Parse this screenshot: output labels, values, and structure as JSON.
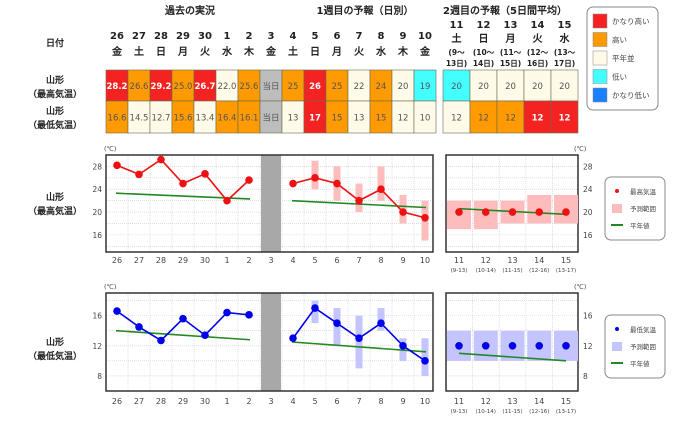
{
  "headers": {
    "past": "過去の実況",
    "week1": "1週目の予報（日別）",
    "week2": "2週目の予報（5日間平均）",
    "date_label": "日付"
  },
  "rows": {
    "max_label": [
      "山形",
      "（最高気温）"
    ],
    "min_label": [
      "山形",
      "（最低気温）"
    ]
  },
  "days": [
    {
      "d": "26",
      "w": "金"
    },
    {
      "d": "27",
      "w": "土"
    },
    {
      "d": "28",
      "w": "日"
    },
    {
      "d": "29",
      "w": "月"
    },
    {
      "d": "30",
      "w": "火"
    },
    {
      "d": "1",
      "w": "水"
    },
    {
      "d": "2",
      "w": "木"
    },
    {
      "d": "3",
      "w": "金"
    },
    {
      "d": "4",
      "w": "土"
    },
    {
      "d": "5",
      "w": "日"
    },
    {
      "d": "6",
      "w": "月"
    },
    {
      "d": "7",
      "w": "火"
    },
    {
      "d": "8",
      "w": "水"
    },
    {
      "d": "9",
      "w": "木"
    },
    {
      "d": "10",
      "w": "金"
    }
  ],
  "week2_days": [
    {
      "d": "11",
      "w": "土",
      "r1": "(9～",
      "r2": "13日)",
      "axis_sub": "(9-13)"
    },
    {
      "d": "12",
      "w": "日",
      "r1": "(10～",
      "r2": "14日)",
      "axis_sub": "(10-14)"
    },
    {
      "d": "13",
      "w": "月",
      "r1": "(11～",
      "r2": "15日)",
      "axis_sub": "(11-15)"
    },
    {
      "d": "14",
      "w": "火",
      "r1": "(12～",
      "r2": "16日)",
      "axis_sub": "(12-16)"
    },
    {
      "d": "15",
      "w": "水",
      "r1": "(13～",
      "r2": "17日)",
      "axis_sub": "(13-17)"
    }
  ],
  "table": {
    "max": [
      {
        "v": "28.2",
        "c": "vh"
      },
      {
        "v": "26.6",
        "c": "h"
      },
      {
        "v": "29.2",
        "c": "vh"
      },
      {
        "v": "25.0",
        "c": "h"
      },
      {
        "v": "26.7",
        "c": "vh"
      },
      {
        "v": "22.0",
        "c": "n"
      },
      {
        "v": "25.6",
        "c": "h"
      },
      {
        "v": "当日",
        "c": "today"
      },
      {
        "v": "25",
        "c": "h"
      },
      {
        "v": "26",
        "c": "vh"
      },
      {
        "v": "25",
        "c": "h"
      },
      {
        "v": "22",
        "c": "n"
      },
      {
        "v": "24",
        "c": "h"
      },
      {
        "v": "20",
        "c": "n"
      },
      {
        "v": "19",
        "c": "l"
      }
    ],
    "max_week2": [
      {
        "v": "20",
        "c": "l"
      },
      {
        "v": "20",
        "c": "n"
      },
      {
        "v": "20",
        "c": "n"
      },
      {
        "v": "20",
        "c": "n"
      },
      {
        "v": "20",
        "c": "n"
      }
    ],
    "min": [
      {
        "v": "16.6",
        "c": "h"
      },
      {
        "v": "14.5",
        "c": "n"
      },
      {
        "v": "12.7",
        "c": "n"
      },
      {
        "v": "15.6",
        "c": "h"
      },
      {
        "v": "13.4",
        "c": "n"
      },
      {
        "v": "16.4",
        "c": "h"
      },
      {
        "v": "16.1",
        "c": "h"
      },
      {
        "v": "当日",
        "c": "today"
      },
      {
        "v": "13",
        "c": "n"
      },
      {
        "v": "17",
        "c": "vh"
      },
      {
        "v": "15",
        "c": "h"
      },
      {
        "v": "13",
        "c": "n"
      },
      {
        "v": "15",
        "c": "h"
      },
      {
        "v": "12",
        "c": "n"
      },
      {
        "v": "10",
        "c": "n"
      }
    ],
    "min_week2": [
      {
        "v": "12",
        "c": "n"
      },
      {
        "v": "12",
        "c": "h"
      },
      {
        "v": "12",
        "c": "h"
      },
      {
        "v": "12",
        "c": "vh"
      },
      {
        "v": "12",
        "c": "vh"
      }
    ]
  },
  "legend": [
    {
      "key": "vh",
      "label": "かなり高い",
      "color": "#f52222"
    },
    {
      "key": "h",
      "label": "高い",
      "color": "#ff9a00"
    },
    {
      "key": "n",
      "label": "平年並",
      "color": "#fffbe8"
    },
    {
      "key": "l",
      "label": "低い",
      "color": "#44ffff"
    },
    {
      "key": "vl",
      "label": "かなり低い",
      "color": "#1a80ff"
    }
  ],
  "today_color": "#bdbdbd",
  "chart_data": [
    {
      "type": "line",
      "title": "",
      "row_label": [
        "山形",
        "（最高気温）"
      ],
      "ylabel": "(℃)",
      "ylim": [
        13,
        30
      ],
      "yticks": [
        16,
        20,
        24,
        28
      ],
      "color": "#ee1111",
      "range_color": "#ffbcbc",
      "normal_color": "#228822",
      "legend": [
        "最高気温",
        "予測範囲",
        "平年値"
      ],
      "observed": [
        28.2,
        26.6,
        29.2,
        25.0,
        26.7,
        22.0,
        25.6
      ],
      "observed_normal": [
        23.3,
        22.3
      ],
      "forecast": [
        25,
        26,
        25,
        22,
        24,
        20,
        19
      ],
      "forecast_range": [
        null,
        [
          24,
          29
        ],
        [
          22,
          28
        ],
        [
          20,
          25
        ],
        [
          22,
          28
        ],
        [
          18,
          23
        ],
        [
          15,
          22
        ]
      ],
      "forecast_normal": [
        22.0,
        20.8
      ],
      "week2": [
        20,
        20,
        20,
        20,
        20
      ],
      "week2_range": [
        [
          17,
          22
        ],
        [
          17,
          22
        ],
        [
          18,
          22
        ],
        [
          18,
          23
        ],
        [
          18,
          23
        ]
      ],
      "week2_normal": [
        20.6,
        19.6
      ]
    },
    {
      "type": "line",
      "title": "",
      "row_label": [
        "山形",
        "（最低気温）"
      ],
      "ylabel": "(℃)",
      "ylim": [
        6,
        19
      ],
      "yticks": [
        8,
        12,
        16
      ],
      "color": "#0000ee",
      "range_color": "#c4c4ff",
      "normal_color": "#228822",
      "legend": [
        "最低気温",
        "予測範囲",
        "平年値"
      ],
      "observed": [
        16.6,
        14.5,
        12.7,
        15.6,
        13.4,
        16.4,
        16.1
      ],
      "observed_normal": [
        14.0,
        12.8
      ],
      "forecast": [
        13,
        17,
        15,
        13,
        15,
        12,
        10
      ],
      "forecast_range": [
        null,
        [
          15,
          18
        ],
        [
          12,
          17
        ],
        [
          9,
          16
        ],
        [
          14,
          17
        ],
        [
          10,
          13
        ],
        [
          8,
          13
        ]
      ],
      "forecast_normal": [
        12.5,
        11.2
      ],
      "week2": [
        12,
        12,
        12,
        12,
        12
      ],
      "week2_range": [
        [
          10,
          14
        ],
        [
          10,
          14
        ],
        [
          10,
          14
        ],
        [
          10,
          14
        ],
        [
          10,
          14
        ]
      ],
      "week2_normal": [
        11.0,
        10.0
      ]
    }
  ]
}
